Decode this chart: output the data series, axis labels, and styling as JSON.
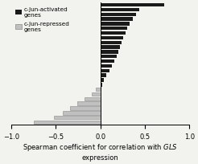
{
  "xlim": [
    -1,
    1
  ],
  "xticks": [
    -1,
    -0.5,
    0,
    0.5,
    1
  ],
  "activated_values": [
    0.72,
    0.44,
    0.4,
    0.36,
    0.33,
    0.3,
    0.28,
    0.26,
    0.24,
    0.22,
    0.2,
    0.18,
    0.16,
    0.13,
    0.1,
    0.07,
    0.04,
    0.02
  ],
  "repressed_values": [
    -0.05,
    -0.1,
    -0.18,
    -0.26,
    -0.34,
    -0.42,
    -0.52,
    -0.75
  ],
  "activated_color": "#1a1a1a",
  "repressed_color": "#c0c0c0",
  "repressed_edge": "#888888",
  "background_color": "#f2f2ee",
  "legend_activated": "c-Jun-activated\ngenes",
  "legend_repressed": "c-Jun-repressed\ngenes"
}
